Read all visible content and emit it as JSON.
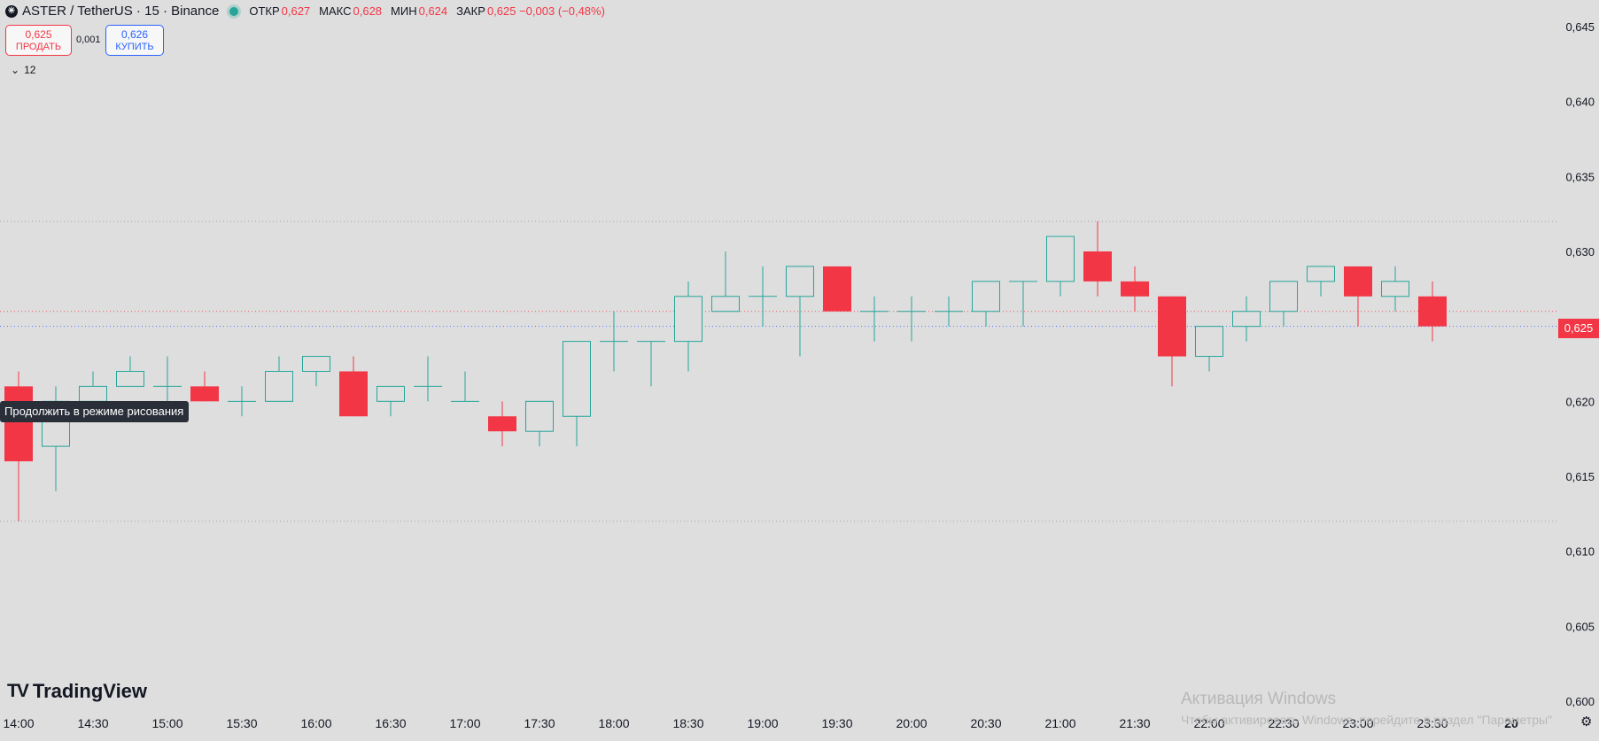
{
  "header": {
    "symbol_icon": "aster-coin-icon",
    "title": "ASTER / TetherUS · 15 · Binance",
    "ohlc": [
      {
        "label": "ОТКР",
        "value": "0,627"
      },
      {
        "label": "МАКС",
        "value": "0,628"
      },
      {
        "label": "МИН",
        "value": "0,624"
      },
      {
        "label": "ЗАКР",
        "value": "0,625 −0,003 (−0,48%)"
      }
    ]
  },
  "trade": {
    "sell_price": "0,625",
    "sell_label": "ПРОДАТЬ",
    "spread": "0,001",
    "buy_price": "0,626",
    "buy_label": "КУПИТЬ"
  },
  "indicator_toggle": {
    "icon": "chevron-down-icon",
    "label": "12"
  },
  "tooltip": "Продолжить в режиме рисования",
  "logo": {
    "mark": "TV",
    "text": "TradingView"
  },
  "last_price_label": "0,625",
  "watermark": {
    "line1": "Активация Windows",
    "line2": "Чтобы активировать Windows, перейдите в раздел \"Параметры\""
  },
  "corner_label": "20",
  "settings_icon": "gear-icon",
  "colors": {
    "up": "#26a69a",
    "down": "#f23645",
    "background": "#dedede",
    "axis_text": "#131722",
    "buy": "#2962ff"
  },
  "chart_data": {
    "type": "candlestick",
    "title": "",
    "x_tick_labels": [
      "14:00",
      "14:30",
      "15:00",
      "15:30",
      "16:00",
      "16:30",
      "17:00",
      "17:30",
      "18:00",
      "18:30",
      "19:00",
      "19:30",
      "20:00",
      "20:30",
      "21:00",
      "21:30",
      "22:00",
      "22:30",
      "23:00",
      "23:30",
      "20"
    ],
    "y_tick_labels": [
      "0,645",
      "0,640",
      "0,635",
      "0,630",
      "0,625",
      "0,620",
      "0,615",
      "0,610",
      "0,605",
      "0,600"
    ],
    "ylim": [
      0.6,
      0.645
    ],
    "reference_lines": [
      0.632,
      0.626,
      0.625,
      0.612
    ],
    "last_price": 0.625,
    "candles": [
      {
        "time": "14:00",
        "open": 0.621,
        "high": 0.622,
        "low": 0.612,
        "close": 0.616
      },
      {
        "time": "14:15",
        "open": 0.617,
        "high": 0.621,
        "low": 0.614,
        "close": 0.62
      },
      {
        "time": "14:30",
        "open": 0.62,
        "high": 0.622,
        "low": 0.62,
        "close": 0.621
      },
      {
        "time": "14:45",
        "open": 0.621,
        "high": 0.623,
        "low": 0.621,
        "close": 0.622
      },
      {
        "time": "15:00",
        "open": 0.621,
        "high": 0.623,
        "low": 0.62,
        "close": 0.621
      },
      {
        "time": "15:15",
        "open": 0.621,
        "high": 0.622,
        "low": 0.62,
        "close": 0.62
      },
      {
        "time": "15:30",
        "open": 0.62,
        "high": 0.621,
        "low": 0.619,
        "close": 0.62
      },
      {
        "time": "15:45",
        "open": 0.62,
        "high": 0.623,
        "low": 0.62,
        "close": 0.622
      },
      {
        "time": "16:00",
        "open": 0.622,
        "high": 0.623,
        "low": 0.621,
        "close": 0.623
      },
      {
        "time": "16:15",
        "open": 0.622,
        "high": 0.623,
        "low": 0.619,
        "close": 0.619
      },
      {
        "time": "16:30",
        "open": 0.62,
        "high": 0.621,
        "low": 0.619,
        "close": 0.621
      },
      {
        "time": "16:45",
        "open": 0.621,
        "high": 0.623,
        "low": 0.62,
        "close": 0.621
      },
      {
        "time": "17:00",
        "open": 0.62,
        "high": 0.622,
        "low": 0.62,
        "close": 0.62
      },
      {
        "time": "17:15",
        "open": 0.619,
        "high": 0.62,
        "low": 0.617,
        "close": 0.618
      },
      {
        "time": "17:30",
        "open": 0.618,
        "high": 0.62,
        "low": 0.617,
        "close": 0.62
      },
      {
        "time": "17:45",
        "open": 0.619,
        "high": 0.624,
        "low": 0.617,
        "close": 0.624
      },
      {
        "time": "18:00",
        "open": 0.624,
        "high": 0.626,
        "low": 0.622,
        "close": 0.624
      },
      {
        "time": "18:15",
        "open": 0.624,
        "high": 0.624,
        "low": 0.621,
        "close": 0.624
      },
      {
        "time": "18:30",
        "open": 0.624,
        "high": 0.628,
        "low": 0.622,
        "close": 0.627
      },
      {
        "time": "18:45",
        "open": 0.626,
        "high": 0.63,
        "low": 0.626,
        "close": 0.627
      },
      {
        "time": "19:00",
        "open": 0.627,
        "high": 0.629,
        "low": 0.625,
        "close": 0.627
      },
      {
        "time": "19:15",
        "open": 0.627,
        "high": 0.629,
        "low": 0.623,
        "close": 0.629
      },
      {
        "time": "19:30",
        "open": 0.629,
        "high": 0.629,
        "low": 0.626,
        "close": 0.626
      },
      {
        "time": "19:45",
        "open": 0.626,
        "high": 0.627,
        "low": 0.624,
        "close": 0.626
      },
      {
        "time": "20:00",
        "open": 0.626,
        "high": 0.627,
        "low": 0.624,
        "close": 0.626
      },
      {
        "time": "20:15",
        "open": 0.626,
        "high": 0.627,
        "low": 0.625,
        "close": 0.626
      },
      {
        "time": "20:30",
        "open": 0.626,
        "high": 0.628,
        "low": 0.625,
        "close": 0.628
      },
      {
        "time": "20:45",
        "open": 0.628,
        "high": 0.628,
        "low": 0.625,
        "close": 0.628
      },
      {
        "time": "21:00",
        "open": 0.628,
        "high": 0.631,
        "low": 0.627,
        "close": 0.631
      },
      {
        "time": "21:15",
        "open": 0.63,
        "high": 0.632,
        "low": 0.627,
        "close": 0.628
      },
      {
        "time": "21:30",
        "open": 0.628,
        "high": 0.629,
        "low": 0.626,
        "close": 0.627
      },
      {
        "time": "21:45",
        "open": 0.627,
        "high": 0.627,
        "low": 0.621,
        "close": 0.623
      },
      {
        "time": "22:00",
        "open": 0.623,
        "high": 0.625,
        "low": 0.622,
        "close": 0.625
      },
      {
        "time": "22:15",
        "open": 0.625,
        "high": 0.627,
        "low": 0.624,
        "close": 0.626
      },
      {
        "time": "22:30",
        "open": 0.626,
        "high": 0.628,
        "low": 0.625,
        "close": 0.628
      },
      {
        "time": "22:45",
        "open": 0.628,
        "high": 0.629,
        "low": 0.627,
        "close": 0.629
      },
      {
        "time": "23:00",
        "open": 0.629,
        "high": 0.629,
        "low": 0.625,
        "close": 0.627
      },
      {
        "time": "23:15",
        "open": 0.627,
        "high": 0.629,
        "low": 0.626,
        "close": 0.628
      },
      {
        "time": "23:30",
        "open": 0.627,
        "high": 0.628,
        "low": 0.624,
        "close": 0.625
      }
    ]
  }
}
